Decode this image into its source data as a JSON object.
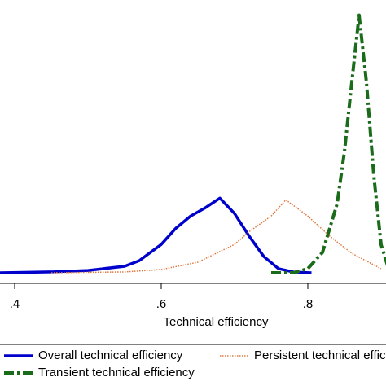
{
  "chart_data": {
    "type": "line",
    "xlabel": "Technical efficiency",
    "xlim": [
      0.38,
      0.9067
    ],
    "ylim": [
      0,
      12.6
    ],
    "xticks": [
      {
        "value": 0.4,
        "label": ".4"
      },
      {
        "value": 0.6,
        "label": ".6"
      },
      {
        "value": 0.8,
        "label": ".8"
      }
    ],
    "series": [
      {
        "name": "Overall technical efficiency",
        "color": "#0000cc",
        "style": "solid",
        "x": [
          0.38,
          0.45,
          0.5,
          0.55,
          0.57,
          0.6,
          0.62,
          0.64,
          0.66,
          0.68,
          0.7,
          0.72,
          0.74,
          0.76,
          0.78,
          0.805
        ],
        "values": [
          0,
          0.04,
          0.11,
          0.3,
          0.56,
          1.31,
          2.06,
          2.62,
          3.0,
          3.45,
          2.74,
          1.69,
          0.75,
          0.19,
          0.04,
          0
        ]
      },
      {
        "name": "Persistent technical efficiency",
        "color": "#e07840",
        "style": "dotted",
        "x": [
          0.45,
          0.55,
          0.6,
          0.65,
          0.7,
          0.72,
          0.75,
          0.77,
          0.8,
          0.83,
          0.86,
          0.9
        ],
        "values": [
          0,
          0.04,
          0.15,
          0.49,
          1.31,
          1.9,
          2.62,
          3.37,
          2.62,
          1.69,
          0.9,
          0.19
        ]
      },
      {
        "name": "Transient technical efficiency",
        "color": "#1a6b1a",
        "style": "dashdot",
        "x": [
          0.75,
          0.78,
          0.8,
          0.82,
          0.84,
          0.85,
          0.86,
          0.87,
          0.88,
          0.89,
          0.9,
          0.91
        ],
        "values": [
          0,
          0,
          0.19,
          0.94,
          3.19,
          5.6,
          8.8,
          11.9,
          8.8,
          4.5,
          1.3,
          0.2
        ]
      }
    ]
  }
}
